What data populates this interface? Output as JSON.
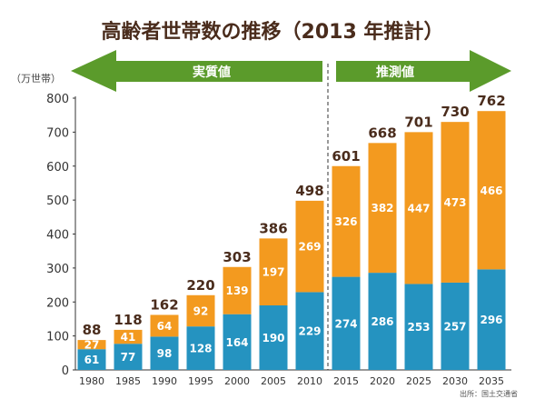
{
  "chart_data": {
    "type": "bar",
    "stacked": true,
    "title": "高齢者世帯数の推移（2013 年推計）",
    "unit_label": "（万世帯）",
    "source": "出所：国土交通省",
    "periods": [
      {
        "label": "実質値",
        "direction": "left"
      },
      {
        "label": "推測値",
        "direction": "right"
      }
    ],
    "categories": [
      "1980",
      "1985",
      "1990",
      "1995",
      "2000",
      "2005",
      "2010",
      "2015",
      "2020",
      "2025",
      "2030",
      "2035"
    ],
    "series": [
      {
        "values": [
          61,
          77,
          98,
          128,
          164,
          190,
          229,
          274,
          286,
          253,
          257,
          296
        ],
        "color": "#2593c0"
      },
      {
        "values": [
          27,
          41,
          64,
          92,
          139,
          197,
          269,
          326,
          382,
          447,
          473,
          466
        ],
        "color": "#f39a1f"
      }
    ],
    "totals": [
      88,
      118,
      162,
      220,
      303,
      386,
      498,
      601,
      668,
      701,
      730,
      762
    ],
    "ylim": [
      0,
      800
    ],
    "yticks": [
      0,
      100,
      200,
      300,
      400,
      500,
      600,
      700,
      800
    ],
    "grid": false,
    "colors": {
      "title": "#4a2c1c",
      "arrow": "#5b9b2b",
      "total_label": "#4a2c1c"
    }
  }
}
